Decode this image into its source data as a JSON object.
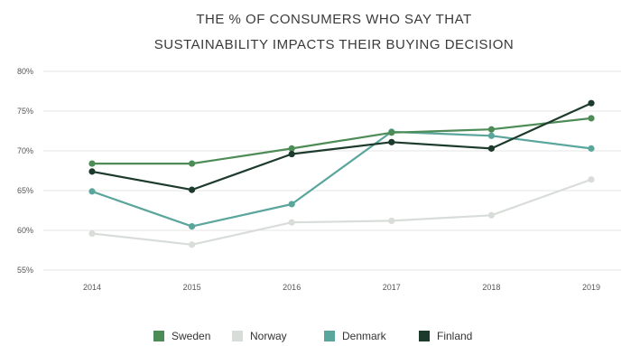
{
  "chart_data": {
    "type": "line",
    "title_lines": [
      "THE % OF CONSUMERS WHO SAY THAT",
      "SUSTAINABILITY IMPACTS THEIR BUYING DECISION"
    ],
    "x": [
      "2014",
      "2015",
      "2016",
      "2017",
      "2018",
      "2019"
    ],
    "y_ticks": [
      "80%",
      "75%",
      "70%",
      "65%",
      "60%",
      "55%"
    ],
    "ylim": [
      55,
      80
    ],
    "grid": true,
    "legend_position": "bottom",
    "series": [
      {
        "name": "Sweden",
        "color": "#4e8c57",
        "values": [
          68.4,
          68.4,
          70.3,
          72.3,
          72.7,
          74.1
        ]
      },
      {
        "name": "Norway",
        "color": "#d9ddd9",
        "values": [
          59.6,
          58.2,
          61.0,
          61.2,
          61.9,
          66.4
        ]
      },
      {
        "name": "Denmark",
        "color": "#5aa59c",
        "values": [
          64.9,
          60.5,
          63.3,
          72.4,
          71.9,
          70.3
        ]
      },
      {
        "name": "Finland",
        "color": "#1d3b2c",
        "values": [
          67.4,
          65.1,
          69.6,
          71.1,
          70.3,
          76.0
        ]
      }
    ]
  }
}
